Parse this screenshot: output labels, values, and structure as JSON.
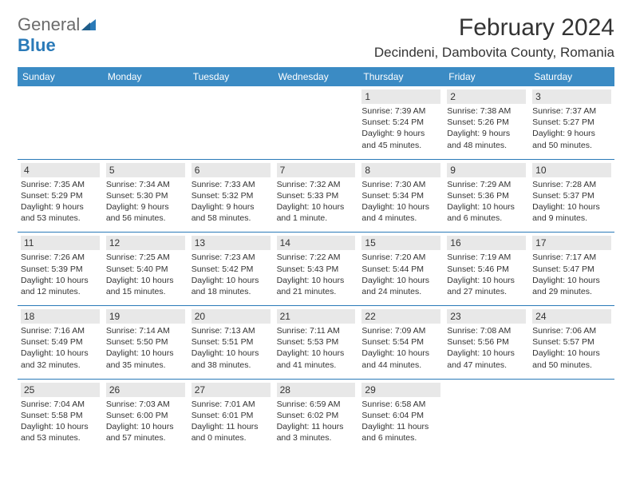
{
  "logo": {
    "text1": "General",
    "text2": "Blue"
  },
  "title": "February 2024",
  "location": "Decindeni, Dambovita County, Romania",
  "weekdays": [
    "Sunday",
    "Monday",
    "Tuesday",
    "Wednesday",
    "Thursday",
    "Friday",
    "Saturday"
  ],
  "colors": {
    "header_bg": "#3b8bc4",
    "accent": "#2a7ab8",
    "daynum_bg": "#e8e8e8",
    "text": "#333333",
    "logo_gray": "#6b6b6b"
  },
  "weeks": [
    [
      {
        "day": "",
        "sunrise": "",
        "sunset": "",
        "daylight": ""
      },
      {
        "day": "",
        "sunrise": "",
        "sunset": "",
        "daylight": ""
      },
      {
        "day": "",
        "sunrise": "",
        "sunset": "",
        "daylight": ""
      },
      {
        "day": "",
        "sunrise": "",
        "sunset": "",
        "daylight": ""
      },
      {
        "day": "1",
        "sunrise": "Sunrise: 7:39 AM",
        "sunset": "Sunset: 5:24 PM",
        "daylight": "Daylight: 9 hours and 45 minutes."
      },
      {
        "day": "2",
        "sunrise": "Sunrise: 7:38 AM",
        "sunset": "Sunset: 5:26 PM",
        "daylight": "Daylight: 9 hours and 48 minutes."
      },
      {
        "day": "3",
        "sunrise": "Sunrise: 7:37 AM",
        "sunset": "Sunset: 5:27 PM",
        "daylight": "Daylight: 9 hours and 50 minutes."
      }
    ],
    [
      {
        "day": "4",
        "sunrise": "Sunrise: 7:35 AM",
        "sunset": "Sunset: 5:29 PM",
        "daylight": "Daylight: 9 hours and 53 minutes."
      },
      {
        "day": "5",
        "sunrise": "Sunrise: 7:34 AM",
        "sunset": "Sunset: 5:30 PM",
        "daylight": "Daylight: 9 hours and 56 minutes."
      },
      {
        "day": "6",
        "sunrise": "Sunrise: 7:33 AM",
        "sunset": "Sunset: 5:32 PM",
        "daylight": "Daylight: 9 hours and 58 minutes."
      },
      {
        "day": "7",
        "sunrise": "Sunrise: 7:32 AM",
        "sunset": "Sunset: 5:33 PM",
        "daylight": "Daylight: 10 hours and 1 minute."
      },
      {
        "day": "8",
        "sunrise": "Sunrise: 7:30 AM",
        "sunset": "Sunset: 5:34 PM",
        "daylight": "Daylight: 10 hours and 4 minutes."
      },
      {
        "day": "9",
        "sunrise": "Sunrise: 7:29 AM",
        "sunset": "Sunset: 5:36 PM",
        "daylight": "Daylight: 10 hours and 6 minutes."
      },
      {
        "day": "10",
        "sunrise": "Sunrise: 7:28 AM",
        "sunset": "Sunset: 5:37 PM",
        "daylight": "Daylight: 10 hours and 9 minutes."
      }
    ],
    [
      {
        "day": "11",
        "sunrise": "Sunrise: 7:26 AM",
        "sunset": "Sunset: 5:39 PM",
        "daylight": "Daylight: 10 hours and 12 minutes."
      },
      {
        "day": "12",
        "sunrise": "Sunrise: 7:25 AM",
        "sunset": "Sunset: 5:40 PM",
        "daylight": "Daylight: 10 hours and 15 minutes."
      },
      {
        "day": "13",
        "sunrise": "Sunrise: 7:23 AM",
        "sunset": "Sunset: 5:42 PM",
        "daylight": "Daylight: 10 hours and 18 minutes."
      },
      {
        "day": "14",
        "sunrise": "Sunrise: 7:22 AM",
        "sunset": "Sunset: 5:43 PM",
        "daylight": "Daylight: 10 hours and 21 minutes."
      },
      {
        "day": "15",
        "sunrise": "Sunrise: 7:20 AM",
        "sunset": "Sunset: 5:44 PM",
        "daylight": "Daylight: 10 hours and 24 minutes."
      },
      {
        "day": "16",
        "sunrise": "Sunrise: 7:19 AM",
        "sunset": "Sunset: 5:46 PM",
        "daylight": "Daylight: 10 hours and 27 minutes."
      },
      {
        "day": "17",
        "sunrise": "Sunrise: 7:17 AM",
        "sunset": "Sunset: 5:47 PM",
        "daylight": "Daylight: 10 hours and 29 minutes."
      }
    ],
    [
      {
        "day": "18",
        "sunrise": "Sunrise: 7:16 AM",
        "sunset": "Sunset: 5:49 PM",
        "daylight": "Daylight: 10 hours and 32 minutes."
      },
      {
        "day": "19",
        "sunrise": "Sunrise: 7:14 AM",
        "sunset": "Sunset: 5:50 PM",
        "daylight": "Daylight: 10 hours and 35 minutes."
      },
      {
        "day": "20",
        "sunrise": "Sunrise: 7:13 AM",
        "sunset": "Sunset: 5:51 PM",
        "daylight": "Daylight: 10 hours and 38 minutes."
      },
      {
        "day": "21",
        "sunrise": "Sunrise: 7:11 AM",
        "sunset": "Sunset: 5:53 PM",
        "daylight": "Daylight: 10 hours and 41 minutes."
      },
      {
        "day": "22",
        "sunrise": "Sunrise: 7:09 AM",
        "sunset": "Sunset: 5:54 PM",
        "daylight": "Daylight: 10 hours and 44 minutes."
      },
      {
        "day": "23",
        "sunrise": "Sunrise: 7:08 AM",
        "sunset": "Sunset: 5:56 PM",
        "daylight": "Daylight: 10 hours and 47 minutes."
      },
      {
        "day": "24",
        "sunrise": "Sunrise: 7:06 AM",
        "sunset": "Sunset: 5:57 PM",
        "daylight": "Daylight: 10 hours and 50 minutes."
      }
    ],
    [
      {
        "day": "25",
        "sunrise": "Sunrise: 7:04 AM",
        "sunset": "Sunset: 5:58 PM",
        "daylight": "Daylight: 10 hours and 53 minutes."
      },
      {
        "day": "26",
        "sunrise": "Sunrise: 7:03 AM",
        "sunset": "Sunset: 6:00 PM",
        "daylight": "Daylight: 10 hours and 57 minutes."
      },
      {
        "day": "27",
        "sunrise": "Sunrise: 7:01 AM",
        "sunset": "Sunset: 6:01 PM",
        "daylight": "Daylight: 11 hours and 0 minutes."
      },
      {
        "day": "28",
        "sunrise": "Sunrise: 6:59 AM",
        "sunset": "Sunset: 6:02 PM",
        "daylight": "Daylight: 11 hours and 3 minutes."
      },
      {
        "day": "29",
        "sunrise": "Sunrise: 6:58 AM",
        "sunset": "Sunset: 6:04 PM",
        "daylight": "Daylight: 11 hours and 6 minutes."
      },
      {
        "day": "",
        "sunrise": "",
        "sunset": "",
        "daylight": ""
      },
      {
        "day": "",
        "sunrise": "",
        "sunset": "",
        "daylight": ""
      }
    ]
  ]
}
